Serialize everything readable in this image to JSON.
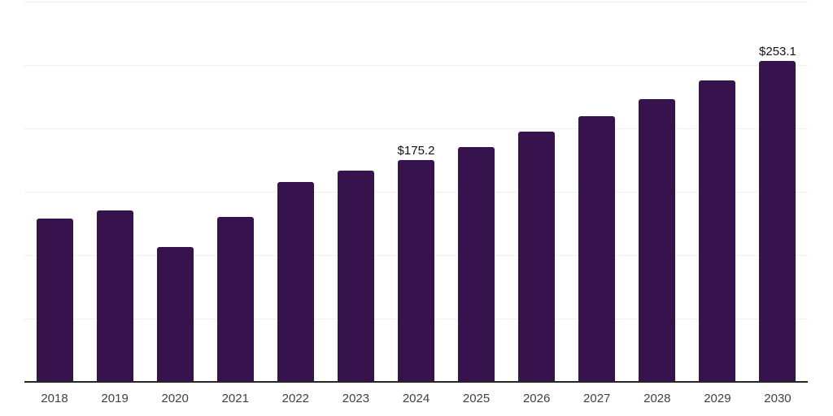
{
  "chart_data": {
    "type": "bar",
    "title": "",
    "xlabel": "",
    "ylabel": "",
    "categories": [
      "2018",
      "2019",
      "2020",
      "2021",
      "2022",
      "2023",
      "2024",
      "2025",
      "2026",
      "2027",
      "2028",
      "2029",
      "2030"
    ],
    "values": [
      128.9,
      135.2,
      106.4,
      130.2,
      157.5,
      166.8,
      175.2,
      185.3,
      197.5,
      209.6,
      223.1,
      237.8,
      253.1
    ],
    "annotations": [
      {
        "category": "2024",
        "text": "$175.2"
      },
      {
        "category": "2030",
        "text": "$253.1"
      }
    ],
    "ylim": [
      0,
      300
    ],
    "grid_step": 50,
    "grid": true,
    "y_tick_labels_visible": false,
    "legend": "none",
    "colors": {
      "bar": "#36134D",
      "gridline": "#F0F0F2",
      "axis_line": "#262626",
      "tick_label": "#404040",
      "data_label": "#111111",
      "background": "#FFFFFF"
    }
  }
}
